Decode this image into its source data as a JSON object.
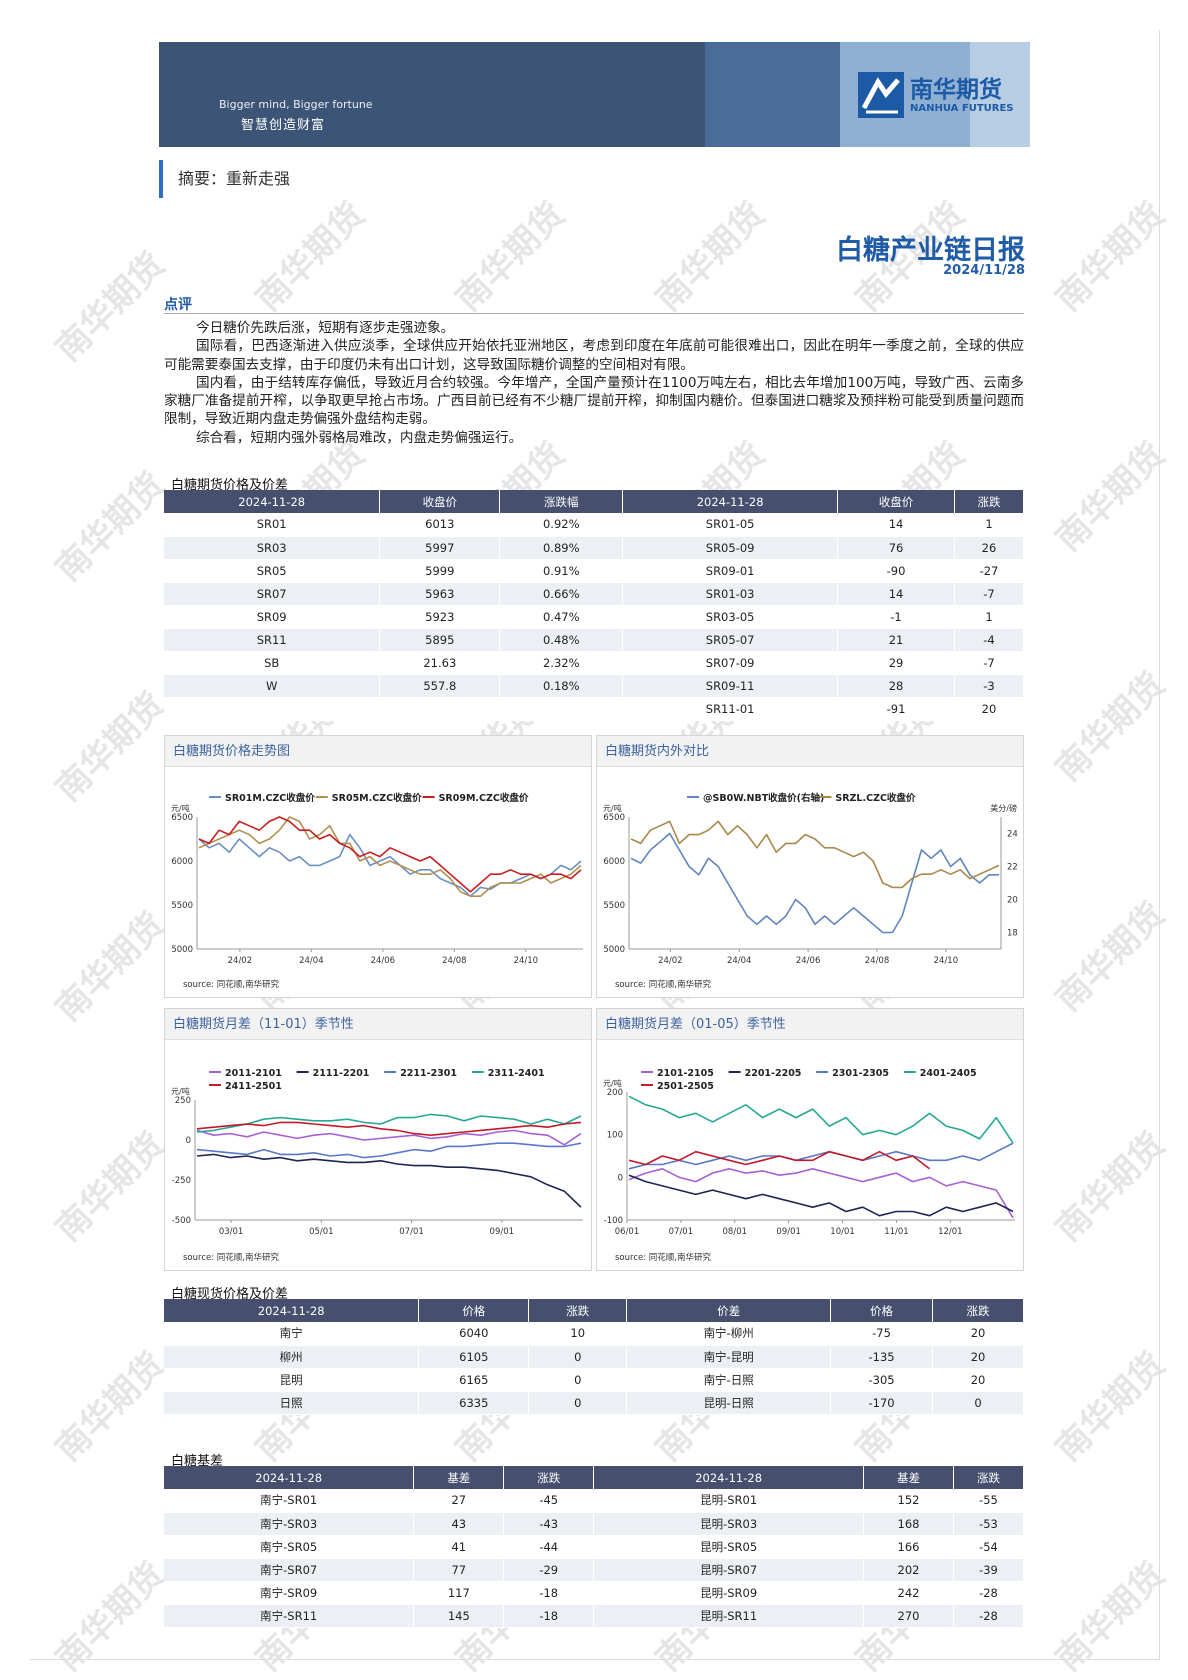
{
  "header": {
    "slogan_en": "Bigger mind, Bigger fortune",
    "slogan_cn": "智慧创造财富",
    "logo_cn": "南华期货",
    "logo_en": "NANHUA FUTURES",
    "colors": {
      "banner_dark": "#3c5576",
      "banner_mid": "#4a6c99",
      "banner_light": "#8fb0d2",
      "accent": "#1f5ba6"
    }
  },
  "abstract": "摘要：重新走强",
  "report": {
    "title": "白糖产业链日报",
    "date": "2024/11/28"
  },
  "commentary": {
    "heading": "点评",
    "paragraphs": [
      "今日糖价先跌后涨，短期有逐步走强迹象。",
      "国际看，巴西逐渐进入供应淡季，全球供应开始依托亚洲地区，考虑到印度在年底前可能很难出口，因此在明年一季度之前，全球的供应可能需要泰国去支撑，由于印度仍未有出口计划，这导致国际糖价调整的空间相对有限。",
      "国内看，由于结转库存偏低，导致近月合约较强。今年增产，全国产量预计在1100万吨左右，相比去年增加100万吨，导致广西、云南多家糖厂准备提前开榨，以争取更早抢占市场。广西目前已经有不少糖厂提前开榨，抑制国内糖价。但泰国进口糖浆及预拌粉可能受到质量问题而限制，导致近期内盘走势偏强外盘结构走弱。",
      "综合看，短期内强外弱格局难改，内盘走势偏强运行。"
    ]
  },
  "watermark": "南华期货",
  "futures_table": {
    "caption": "白糖期货价格及价差",
    "headers": [
      "2024-11-28",
      "收盘价",
      "涨跌幅",
      "2024-11-28",
      "收盘价",
      "涨跌"
    ],
    "rows": [
      [
        "SR01",
        "6013",
        "0.92%",
        "SR01-05",
        "14",
        "1"
      ],
      [
        "SR03",
        "5997",
        "0.89%",
        "SR05-09",
        "76",
        "26"
      ],
      [
        "SR05",
        "5999",
        "0.91%",
        "SR09-01",
        "-90",
        "-27"
      ],
      [
        "SR07",
        "5963",
        "0.66%",
        "SR01-03",
        "14",
        "-7"
      ],
      [
        "SR09",
        "5923",
        "0.47%",
        "SR03-05",
        "-1",
        "1"
      ],
      [
        "SR11",
        "5895",
        "0.48%",
        "SR05-07",
        "21",
        "-4"
      ],
      [
        "SB",
        "21.63",
        "2.32%",
        "SR07-09",
        "29",
        "-7"
      ],
      [
        "W",
        "557.8",
        "0.18%",
        "SR09-11",
        "28",
        "-3"
      ],
      [
        "",
        "",
        "",
        "SR11-01",
        "-91",
        "20"
      ]
    ]
  },
  "spot_table": {
    "caption": "白糖现货价格及价差",
    "headers": [
      "2024-11-28",
      "价格",
      "涨跌",
      "价差",
      "价格",
      "涨跌"
    ],
    "rows": [
      [
        "南宁",
        "6040",
        "10",
        "南宁-柳州",
        "-75",
        "20"
      ],
      [
        "柳州",
        "6105",
        "0",
        "南宁-昆明",
        "-135",
        "20"
      ],
      [
        "昆明",
        "6165",
        "0",
        "南宁-日照",
        "-305",
        "20"
      ],
      [
        "日照",
        "6335",
        "0",
        "昆明-日照",
        "-170",
        "0"
      ]
    ]
  },
  "basis_table": {
    "caption": "白糖基差",
    "headers": [
      "2024-11-28",
      "基差",
      "涨跌",
      "2024-11-28",
      "基差",
      "涨跌"
    ],
    "rows": [
      [
        "南宁-SR01",
        "27",
        "-45",
        "昆明-SR01",
        "152",
        "-55"
      ],
      [
        "南宁-SR03",
        "43",
        "-43",
        "昆明-SR03",
        "168",
        "-53"
      ],
      [
        "南宁-SR05",
        "41",
        "-44",
        "昆明-SR05",
        "166",
        "-54"
      ],
      [
        "南宁-SR07",
        "77",
        "-29",
        "昆明-SR07",
        "202",
        "-39"
      ],
      [
        "南宁-SR09",
        "117",
        "-18",
        "昆明-SR09",
        "242",
        "-28"
      ],
      [
        "南宁-SR11",
        "145",
        "-18",
        "昆明-SR11",
        "270",
        "-28"
      ]
    ]
  },
  "chart_data": [
    {
      "id": "price_trend",
      "title": "白糖期货价格走势图",
      "type": "line",
      "ylabel": "元/吨",
      "ylim": [
        5000,
        6500
      ],
      "yticks": [
        5000,
        5500,
        6000,
        6500
      ],
      "xticks": [
        "24/02",
        "24/04",
        "24/06",
        "24/08",
        "24/10"
      ],
      "source": "source: 同花顺,南华研究",
      "series": [
        {
          "name": "SR01M.CZC收盘价",
          "color": "#6b8fc2",
          "values": [
            6250,
            6150,
            6200,
            6100,
            6250,
            6150,
            6050,
            6150,
            6100,
            6000,
            6050,
            5950,
            5950,
            6000,
            6050,
            6300,
            6150,
            5950,
            6000,
            6050,
            5950,
            5850,
            5900,
            5900,
            5800,
            5750,
            5700,
            5600,
            5700,
            5680,
            5750,
            5750,
            5800,
            5850,
            5800,
            5850,
            5950,
            5900,
            6000
          ]
        },
        {
          "name": "SR05M.CZC收盘价",
          "color": "#b08f50",
          "values": [
            6150,
            6200,
            6250,
            6300,
            6350,
            6300,
            6200,
            6250,
            6350,
            6500,
            6450,
            6250,
            6300,
            6400,
            6200,
            6200,
            6000,
            6050,
            5950,
            6000,
            5950,
            5900,
            5850,
            5850,
            5900,
            5800,
            5650,
            5600,
            5600,
            5700,
            5750,
            5750,
            5750,
            5800,
            5850,
            5750,
            5800,
            5850,
            5950
          ]
        },
        {
          "name": "SR09M.CZC收盘价",
          "color": "#c81e1e",
          "values": [
            6250,
            6200,
            6350,
            6300,
            6450,
            6400,
            6350,
            6450,
            6500,
            6450,
            6350,
            6350,
            6250,
            6300,
            6200,
            6150,
            6050,
            6100,
            6050,
            6150,
            6100,
            6050,
            6000,
            6050,
            5950,
            5850,
            5750,
            5650,
            5750,
            5850,
            5850,
            5900,
            5850,
            5850,
            5800,
            5850,
            5850,
            5800,
            5900
          ]
        }
      ]
    },
    {
      "id": "domestic_vs_intl",
      "title": "白糖期货内外对比",
      "type": "line",
      "ylabel": "元/吨",
      "ylabel_right": "美分/磅",
      "ylim": [
        5000,
        6500
      ],
      "yticks": [
        5000,
        5500,
        6000,
        6500
      ],
      "ylim_right": [
        17,
        25
      ],
      "yticks_right": [
        18,
        20,
        22,
        24
      ],
      "xticks": [
        "24/02",
        "24/04",
        "24/06",
        "24/08",
        "24/10"
      ],
      "source": "source: 同花顺,南华研究",
      "series": [
        {
          "name": "@SB0W.NBT收盘价(右轴)",
          "color": "#5f85bb",
          "axis": "right",
          "values": [
            22.5,
            22.2,
            23.0,
            23.5,
            24.0,
            23.0,
            22.0,
            21.5,
            22.5,
            22.0,
            21.0,
            20.0,
            19.0,
            18.5,
            19.0,
            18.5,
            19.0,
            20.0,
            19.5,
            18.5,
            19.0,
            18.5,
            19.0,
            19.5,
            19.0,
            18.5,
            18.0,
            18.0,
            19.0,
            21.0,
            23.0,
            22.5,
            23.0,
            22.0,
            22.5,
            21.5,
            21.0,
            21.5,
            21.5
          ]
        },
        {
          "name": "SRZL.CZC收盘价",
          "color": "#a9884a",
          "axis": "left",
          "values": [
            6250,
            6200,
            6350,
            6400,
            6450,
            6200,
            6300,
            6300,
            6350,
            6450,
            6300,
            6400,
            6300,
            6150,
            6300,
            6100,
            6200,
            6200,
            6300,
            6250,
            6150,
            6150,
            6100,
            6050,
            6100,
            6000,
            5750,
            5700,
            5700,
            5800,
            5850,
            5850,
            5900,
            5850,
            5900,
            5800,
            5850,
            5900,
            5950
          ]
        }
      ]
    },
    {
      "id": "spread_11_01",
      "title": "白糖期货月差（11-01）季节性",
      "type": "line",
      "ylabel": "元/吨",
      "ylim": [
        -500,
        250
      ],
      "yticks": [
        -500,
        -250,
        0,
        250
      ],
      "xticks": [
        "03/01",
        "05/01",
        "07/01",
        "09/01"
      ],
      "source": "source: 同花顺,南华研究",
      "series": [
        {
          "name": "2011-2101",
          "color": "#a562d4",
          "values": [
            60,
            30,
            40,
            20,
            50,
            30,
            10,
            30,
            40,
            20,
            0,
            10,
            20,
            30,
            10,
            20,
            40,
            30,
            50,
            60,
            40,
            30,
            -30,
            40
          ]
        },
        {
          "name": "2111-2201",
          "color": "#1c2452",
          "values": [
            -100,
            -90,
            -110,
            -100,
            -120,
            -110,
            -130,
            -120,
            -130,
            -140,
            -140,
            -130,
            -150,
            -160,
            -160,
            -170,
            -170,
            -180,
            -190,
            -210,
            -230,
            -280,
            -320,
            -420
          ]
        },
        {
          "name": "2211-2301",
          "color": "#5a78c8",
          "values": [
            -60,
            -70,
            -80,
            -90,
            -60,
            -90,
            -90,
            -80,
            -100,
            -90,
            -110,
            -100,
            -80,
            -60,
            -70,
            -40,
            -40,
            -30,
            -20,
            -20,
            -30,
            -40,
            -40,
            -20
          ]
        },
        {
          "name": "2311-2401",
          "color": "#27a894",
          "values": [
            50,
            60,
            80,
            100,
            130,
            140,
            130,
            120,
            120,
            130,
            110,
            100,
            140,
            140,
            160,
            150,
            120,
            150,
            140,
            130,
            100,
            130,
            100,
            150
          ]
        },
        {
          "name": "2411-2501",
          "color": "#c4182c",
          "values": [
            70,
            80,
            90,
            100,
            90,
            110,
            110,
            100,
            90,
            80,
            90,
            70,
            60,
            40,
            30,
            40,
            50,
            60,
            70,
            80,
            90,
            80,
            100,
            110
          ]
        }
      ]
    },
    {
      "id": "spread_01_05",
      "title": "白糖期货月差（01-05）季节性",
      "type": "line",
      "ylabel": "元/吨",
      "ylim": [
        -100,
        200
      ],
      "yticks": [
        -100,
        0,
        100,
        200
      ],
      "xticks": [
        "06/01",
        "07/01",
        "08/01",
        "09/01",
        "10/01",
        "11/01",
        "12/01"
      ],
      "source": "source: 同花顺,南华研究",
      "series": [
        {
          "name": "2101-2105",
          "color": "#a562d4",
          "values": [
            -5,
            10,
            20,
            0,
            -10,
            10,
            20,
            10,
            15,
            5,
            10,
            20,
            10,
            0,
            -10,
            0,
            10,
            -10,
            0,
            -20,
            -10,
            -20,
            -30,
            -95
          ]
        },
        {
          "name": "2201-2205",
          "color": "#1c2452",
          "values": [
            5,
            -10,
            -20,
            -30,
            -40,
            -30,
            -40,
            -50,
            -40,
            -50,
            -60,
            -70,
            -60,
            -80,
            -70,
            -90,
            -80,
            -80,
            -90,
            -70,
            -80,
            -70,
            -60,
            -80
          ]
        },
        {
          "name": "2301-2305",
          "color": "#5a78c8",
          "values": [
            20,
            30,
            30,
            40,
            30,
            40,
            50,
            40,
            50,
            50,
            40,
            50,
            60,
            50,
            40,
            50,
            60,
            50,
            40,
            40,
            50,
            40,
            60,
            80
          ]
        },
        {
          "name": "2401-2405",
          "color": "#27a894",
          "values": [
            190,
            170,
            160,
            140,
            150,
            130,
            150,
            170,
            140,
            160,
            140,
            160,
            120,
            140,
            100,
            110,
            100,
            120,
            150,
            120,
            110,
            90,
            140,
            80
          ]
        },
        {
          "name": "2501-2505",
          "color": "#c4182c",
          "values": [
            40,
            30,
            50,
            40,
            60,
            50,
            40,
            30,
            40,
            50,
            40,
            40,
            60,
            50,
            40,
            60,
            40,
            50,
            20,
            null,
            null,
            null,
            null,
            null
          ]
        }
      ]
    }
  ]
}
